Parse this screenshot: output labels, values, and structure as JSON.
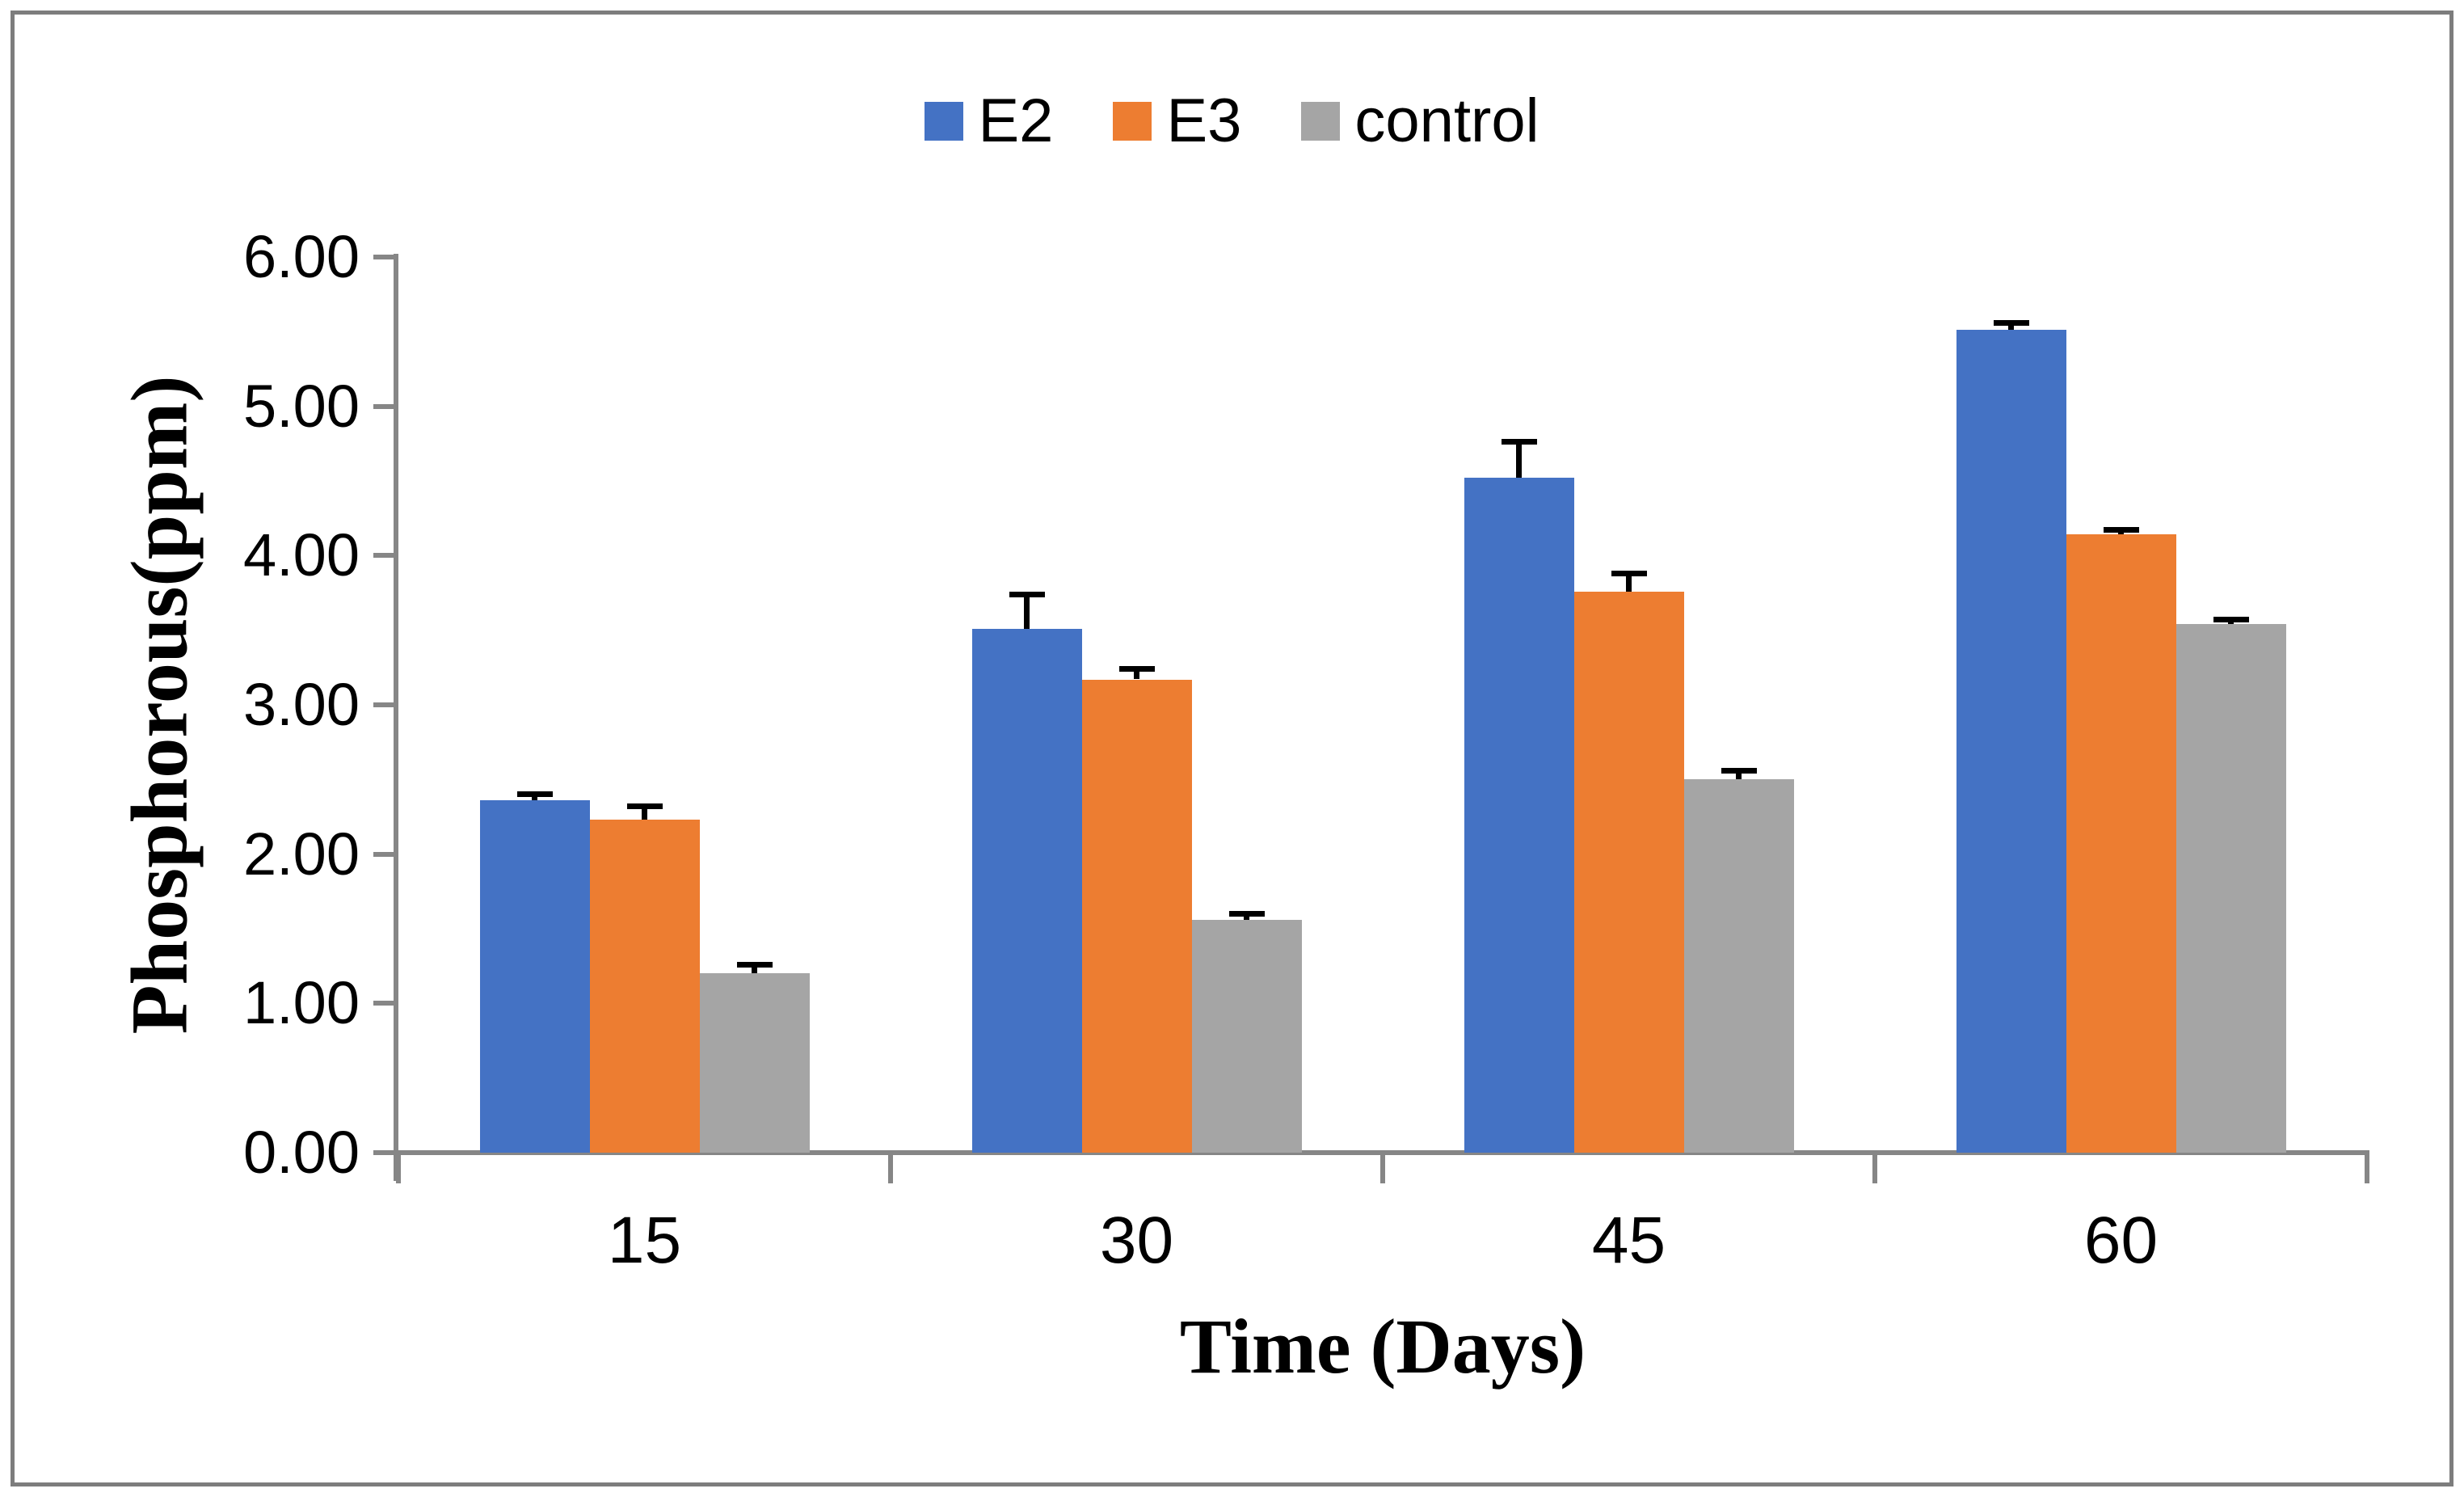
{
  "figure": {
    "background": "#FFFFFF",
    "border_color": "#7D7D7D"
  },
  "chart_data": {
    "type": "bar",
    "title": "",
    "categories": [
      "15",
      "30",
      "45",
      "60"
    ],
    "series": [
      {
        "name": "E2",
        "color": "#4472C4",
        "values": [
          2.36,
          3.51,
          4.52,
          5.51
        ],
        "errors_plus": [
          0.04,
          0.23,
          0.24,
          0.05
        ]
      },
      {
        "name": "E3",
        "color": "#ED7D31",
        "values": [
          2.23,
          3.17,
          3.76,
          4.14
        ],
        "errors_plus": [
          0.09,
          0.07,
          0.12,
          0.03
        ]
      },
      {
        "name": "control",
        "color": "#A5A5A5",
        "values": [
          1.2,
          1.56,
          2.5,
          3.54
        ],
        "errors_plus": [
          0.06,
          0.04,
          0.06,
          0.03
        ]
      }
    ],
    "xlabel": "Time (Days)",
    "ylabel": "Phosphorous(ppm)",
    "ylim": [
      0,
      6
    ],
    "ytick_step": 1,
    "ytick_labels": [
      "0.00",
      "1.00",
      "2.00",
      "3.00",
      "4.00",
      "5.00",
      "6.00"
    ],
    "grid": false,
    "legend_position": "top",
    "error_bar_color": "#000000",
    "axis_color": "#868686"
  }
}
